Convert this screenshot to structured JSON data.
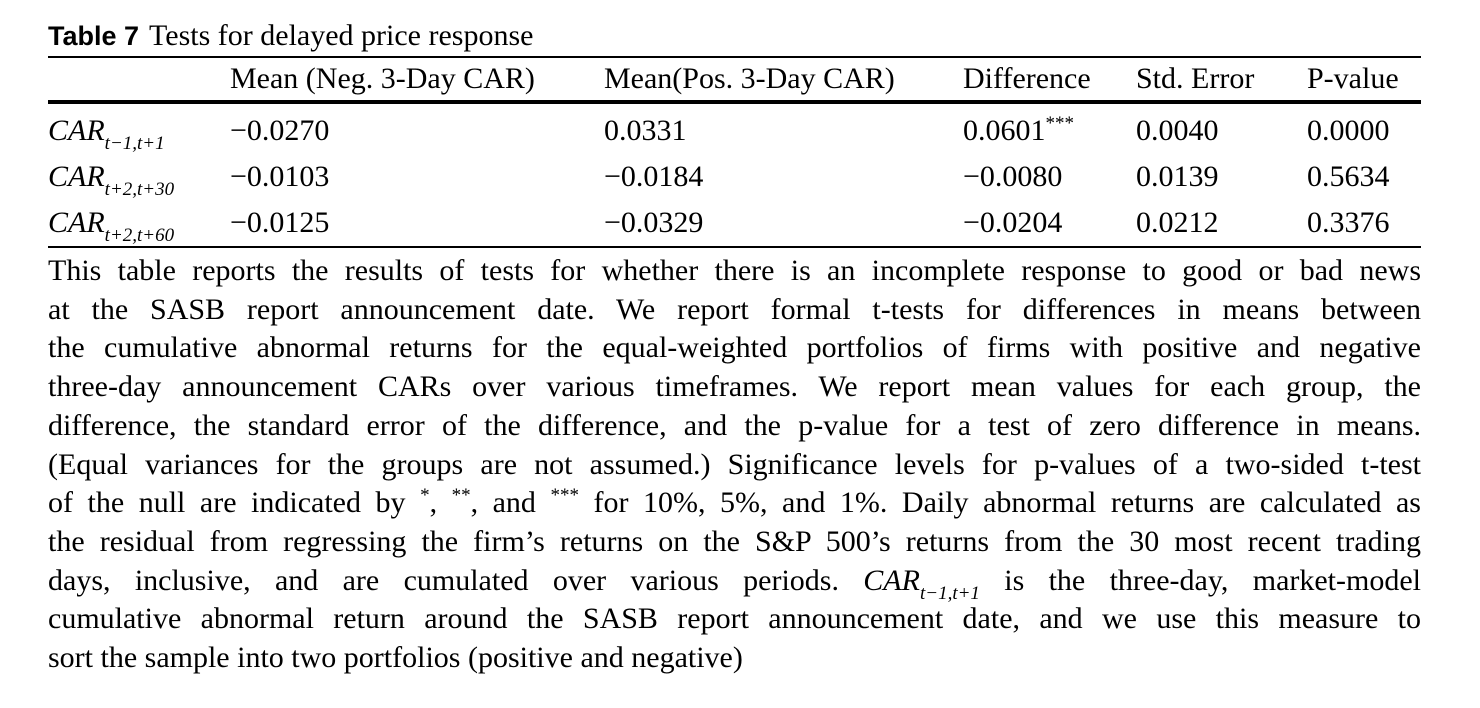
{
  "caption": {
    "label": "Table 7",
    "title": "Tests for delayed price response"
  },
  "table": {
    "headers": [
      "",
      "Mean (Neg. 3-Day CAR)",
      "Mean(Pos. 3-Day CAR)",
      "Difference",
      "Std. Error",
      "P-value"
    ],
    "rows": [
      {
        "var": "CAR",
        "sub": "t−1,t+1",
        "neg": "−0.0270",
        "pos": "0.0331",
        "diff": "0.0601",
        "diff_sig": "***",
        "se": "0.0040",
        "p": "0.0000"
      },
      {
        "var": "CAR",
        "sub": "t+2,t+30",
        "neg": "−0.0103",
        "pos": "−0.0184",
        "diff": "−0.0080",
        "diff_sig": "",
        "se": "0.0139",
        "p": "0.5634"
      },
      {
        "var": "CAR",
        "sub": "t+2,t+60",
        "neg": "−0.0125",
        "pos": "−0.0329",
        "diff": "−0.0204",
        "diff_sig": "",
        "se": "0.0212",
        "p": "0.3376"
      }
    ]
  },
  "note": {
    "l1": "This table reports the results of tests for whether there is an incomplete response to good or bad news",
    "l2": "at the SASB report announcement date. We report formal t-tests for differences in means between",
    "l3": "the cumulative abnormal returns for the equal-weighted portfolios of firms with positive and negative",
    "l4": "three-day announcement CARs over various timeframes. We report mean values for each group, the",
    "l5": "difference, the standard error of the difference, and the p-value for a test of zero difference in means.",
    "l6": "(Equal variances for the groups are not assumed.) Significance levels for p-values of a two-sided t-test",
    "l7a": "of the null are indicated by ",
    "sig1": "*",
    "l7b": ", ",
    "sig2": "**",
    "l7c": ", and ",
    "sig3": "***",
    "l7d": " for 10%, 5%, and 1%. Daily abnormal returns are calculated as",
    "l8": "the residual from regressing the firm’s returns on the S&P 500’s returns from the 30 most recent trading",
    "l9a": "days, inclusive, and are cumulated over various periods. ",
    "l9var": "CAR",
    "l9sub": "t−1,t+1",
    "l9b": " is the three-day, market-model",
    "l10": "cumulative abnormal return around the SASB report announcement date, and we use this measure to",
    "l11": "sort the sample into two portfolios (positive and negative)"
  }
}
